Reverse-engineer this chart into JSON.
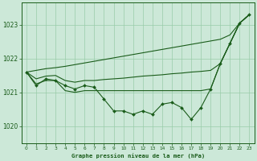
{
  "title": "Graphe pression niveau de la mer (hPa)",
  "background_color": "#cce8d8",
  "grid_color": "#99ccaa",
  "line_color": "#1a5c1a",
  "xlim": [
    -0.5,
    23.5
  ],
  "ylim": [
    1019.5,
    1023.65
  ],
  "yticks": [
    1020,
    1021,
    1022,
    1023
  ],
  "xticks": [
    0,
    1,
    2,
    3,
    4,
    5,
    6,
    7,
    8,
    9,
    10,
    11,
    12,
    13,
    14,
    15,
    16,
    17,
    18,
    19,
    20,
    21,
    22,
    23
  ],
  "series_main": [
    1021.6,
    1021.2,
    1021.4,
    1021.35,
    1021.2,
    1021.1,
    1021.2,
    1021.15,
    1020.8,
    1020.45,
    1020.45,
    1020.35,
    1020.45,
    1020.35,
    1020.65,
    1020.7,
    1020.55,
    1020.2,
    1020.55,
    1021.1,
    1021.85,
    1022.45,
    1023.05,
    1023.3
  ],
  "series_max": [
    1021.6,
    1021.65,
    1021.7,
    1021.73,
    1021.77,
    1021.82,
    1021.87,
    1021.92,
    1021.97,
    1022.02,
    1022.07,
    1022.12,
    1022.17,
    1022.22,
    1022.27,
    1022.32,
    1022.37,
    1022.42,
    1022.47,
    1022.52,
    1022.57,
    1022.7,
    1023.05,
    1023.3
  ],
  "series_min": [
    1021.6,
    1021.25,
    1021.35,
    1021.35,
    1021.05,
    1021.0,
    1021.05,
    1021.05,
    1021.05,
    1021.05,
    1021.05,
    1021.05,
    1021.05,
    1021.05,
    1021.05,
    1021.05,
    1021.05,
    1021.05,
    1021.05,
    1021.1,
    1021.85,
    1022.45,
    1023.05,
    1023.3
  ],
  "series_mean": [
    1021.6,
    1021.4,
    1021.48,
    1021.5,
    1021.35,
    1021.3,
    1021.35,
    1021.35,
    1021.38,
    1021.4,
    1021.42,
    1021.45,
    1021.48,
    1021.5,
    1021.52,
    1021.55,
    1021.57,
    1021.6,
    1021.62,
    1021.65,
    1021.85,
    1022.45,
    1023.05,
    1023.3
  ]
}
